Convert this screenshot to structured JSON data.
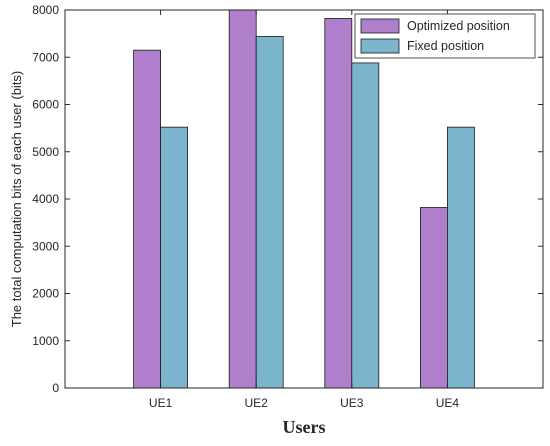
{
  "chart_data": {
    "type": "bar",
    "title": "",
    "xlabel": "Users",
    "ylabel": "The total computation bits of each user (bits)",
    "categories": [
      "UE1",
      "UE2",
      "UE3",
      "UE4"
    ],
    "series": [
      {
        "name": "Optimized position",
        "color": "#B07FCB",
        "values": [
          7150,
          8000,
          7820,
          3820
        ]
      },
      {
        "name": "Fixed position",
        "color": "#7BB5CD",
        "values": [
          5520,
          7440,
          6880,
          5520
        ]
      }
    ],
    "ylim": [
      0,
      8000
    ],
    "yticks": [
      "0",
      "1000",
      "2000",
      "3000",
      "4000",
      "5000",
      "6000",
      "7000",
      "8000"
    ],
    "grid": false,
    "legend_position": "top-right"
  }
}
